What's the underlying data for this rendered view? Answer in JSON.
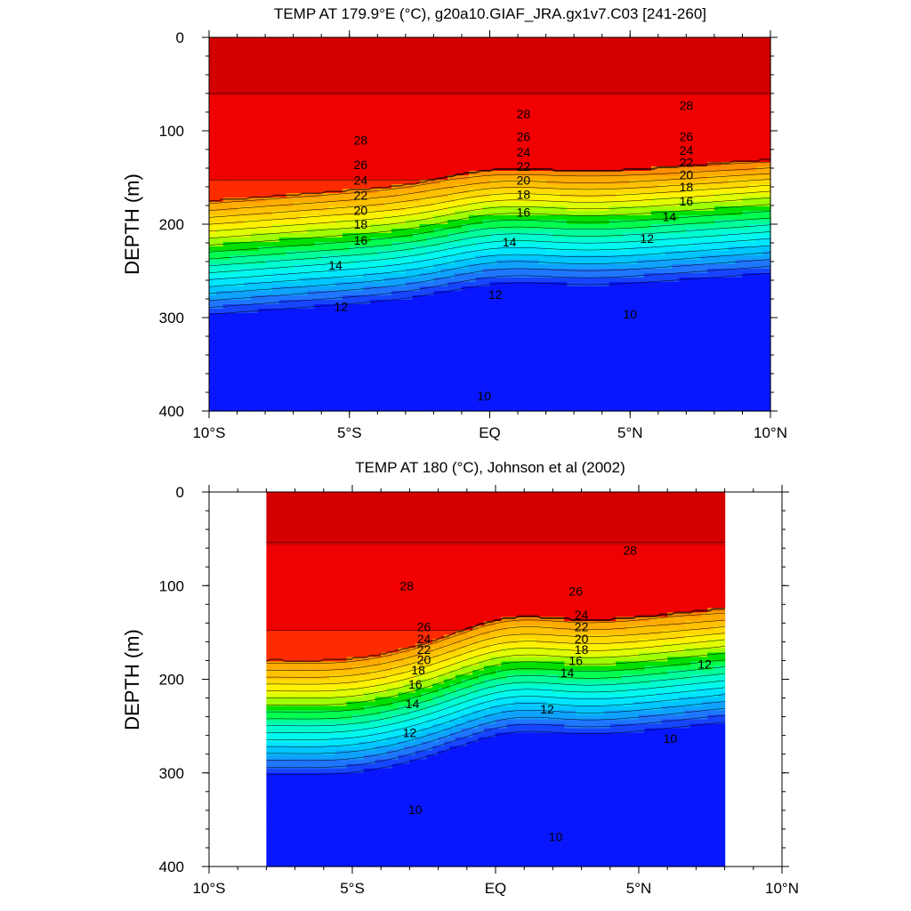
{
  "chart_data": [
    {
      "type": "contour",
      "title": "TEMP AT 179.9°E (°C), g20a10.GIAF_JRA.gx1v7.C03 [241-260]",
      "ylabel": "DEPTH (m)",
      "xlim": [
        -10,
        10
      ],
      "ylim": [
        0,
        400
      ],
      "y_reversed": true,
      "x_ticks": [
        {
          "value": -10,
          "label": "10°S"
        },
        {
          "value": -5,
          "label": "5°S"
        },
        {
          "value": 0,
          "label": "EQ"
        },
        {
          "value": 5,
          "label": "5°N"
        },
        {
          "value": 10,
          "label": "10°N"
        }
      ],
      "y_ticks": [
        0,
        100,
        200,
        300,
        400
      ],
      "contour_levels_C": [
        9,
        10,
        11,
        12,
        13,
        14,
        15,
        16,
        17,
        18,
        19,
        20,
        21,
        22,
        23,
        24,
        25,
        26,
        27,
        28,
        29
      ],
      "contour_labels": [
        {
          "text": "28",
          "lat": -4.6,
          "depth": 110
        },
        {
          "text": "26",
          "lat": -4.6,
          "depth": 136
        },
        {
          "text": "24",
          "lat": -4.6,
          "depth": 153
        },
        {
          "text": "22",
          "lat": -4.6,
          "depth": 169
        },
        {
          "text": "20",
          "lat": -4.6,
          "depth": 185
        },
        {
          "text": "18",
          "lat": -4.6,
          "depth": 200
        },
        {
          "text": "16",
          "lat": -4.6,
          "depth": 217
        },
        {
          "text": "14",
          "lat": -5.5,
          "depth": 244
        },
        {
          "text": "12",
          "lat": -5.3,
          "depth": 288
        },
        {
          "text": "10",
          "lat": -0.2,
          "depth": 384
        },
        {
          "text": "28",
          "lat": 1.2,
          "depth": 82
        },
        {
          "text": "26",
          "lat": 1.2,
          "depth": 106
        },
        {
          "text": "24",
          "lat": 1.2,
          "depth": 123
        },
        {
          "text": "22",
          "lat": 1.2,
          "depth": 138
        },
        {
          "text": "20",
          "lat": 1.2,
          "depth": 153
        },
        {
          "text": "18",
          "lat": 1.2,
          "depth": 168
        },
        {
          "text": "16",
          "lat": 1.2,
          "depth": 187
        },
        {
          "text": "14",
          "lat": 0.7,
          "depth": 219
        },
        {
          "text": "12",
          "lat": 0.2,
          "depth": 275
        },
        {
          "text": "28",
          "lat": 7.0,
          "depth": 73
        },
        {
          "text": "26",
          "lat": 7.0,
          "depth": 106
        },
        {
          "text": "24",
          "lat": 7.0,
          "depth": 121
        },
        {
          "text": "22",
          "lat": 7.0,
          "depth": 134
        },
        {
          "text": "20",
          "lat": 7.0,
          "depth": 147
        },
        {
          "text": "18",
          "lat": 7.0,
          "depth": 160
        },
        {
          "text": "16",
          "lat": 7.0,
          "depth": 175
        },
        {
          "text": "14",
          "lat": 6.4,
          "depth": 192
        },
        {
          "text": "12",
          "lat": 5.6,
          "depth": 215
        },
        {
          "text": "10",
          "lat": 5.0,
          "depth": 296
        }
      ]
    },
    {
      "type": "contour",
      "title": "TEMP AT 180 (°C), Johnson et al (2002)",
      "ylabel": "DEPTH (m)",
      "xlim": [
        -10,
        10
      ],
      "ylim": [
        0,
        400
      ],
      "y_reversed": true,
      "data_lat_range": [
        -8,
        8
      ],
      "x_ticks": [
        {
          "value": -10,
          "label": "10°S"
        },
        {
          "value": -5,
          "label": "5°S"
        },
        {
          "value": 0,
          "label": "EQ"
        },
        {
          "value": 5,
          "label": "5°N"
        },
        {
          "value": 10,
          "label": "10°N"
        }
      ],
      "y_ticks": [
        0,
        100,
        200,
        300,
        400
      ],
      "contour_levels_C": [
        9,
        10,
        11,
        12,
        13,
        14,
        15,
        16,
        17,
        18,
        19,
        20,
        21,
        22,
        23,
        24,
        25,
        26,
        27,
        28,
        29
      ],
      "contour_labels": [
        {
          "text": "28",
          "lat": -3.1,
          "depth": 100
        },
        {
          "text": "26",
          "lat": -2.5,
          "depth": 144
        },
        {
          "text": "24",
          "lat": -2.5,
          "depth": 157
        },
        {
          "text": "22",
          "lat": -2.5,
          "depth": 168
        },
        {
          "text": "20",
          "lat": -2.5,
          "depth": 179
        },
        {
          "text": "18",
          "lat": -2.7,
          "depth": 190
        },
        {
          "text": "16",
          "lat": -2.8,
          "depth": 205
        },
        {
          "text": "14",
          "lat": -2.9,
          "depth": 226
        },
        {
          "text": "12",
          "lat": -3.0,
          "depth": 257
        },
        {
          "text": "10",
          "lat": -2.8,
          "depth": 339
        },
        {
          "text": "28",
          "lat": 4.7,
          "depth": 62
        },
        {
          "text": "26",
          "lat": 2.8,
          "depth": 106
        },
        {
          "text": "24",
          "lat": 3.0,
          "depth": 131
        },
        {
          "text": "22",
          "lat": 3.0,
          "depth": 144
        },
        {
          "text": "20",
          "lat": 3.0,
          "depth": 157
        },
        {
          "text": "18",
          "lat": 3.0,
          "depth": 168
        },
        {
          "text": "16",
          "lat": 2.8,
          "depth": 180
        },
        {
          "text": "14",
          "lat": 2.5,
          "depth": 193
        },
        {
          "text": "12",
          "lat": 1.8,
          "depth": 232
        },
        {
          "text": "10",
          "lat": 6.1,
          "depth": 263
        },
        {
          "text": "10",
          "lat": 2.1,
          "depth": 368
        },
        {
          "text": "12",
          "lat": 7.3,
          "depth": 184
        }
      ]
    }
  ]
}
